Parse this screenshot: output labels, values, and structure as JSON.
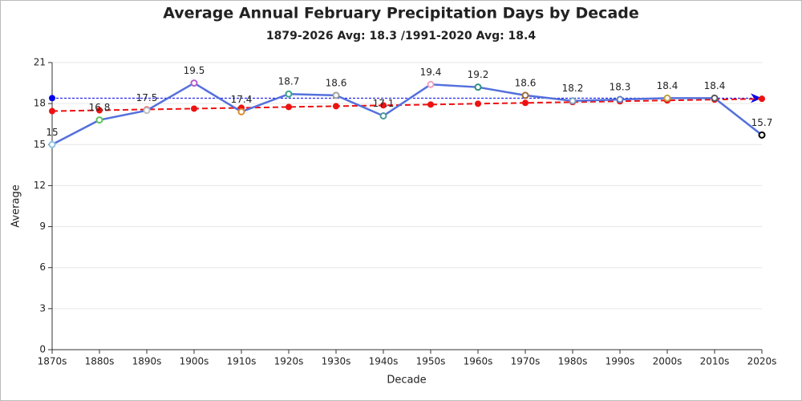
{
  "chart_data": {
    "type": "line",
    "title": "Average Annual February Precipitation Days by Decade",
    "subtitle": "1879-2026 Avg: 18.3 /1991-2020 Avg: 18.4",
    "x_label": "Decade",
    "y_label": "Average",
    "categories": [
      "1870s",
      "1880s",
      "1890s",
      "1900s",
      "1910s",
      "1920s",
      "1930s",
      "1940s",
      "1950s",
      "1960s",
      "1970s",
      "1980s",
      "1990s",
      "2000s",
      "2010s",
      "2020s"
    ],
    "series": [
      {
        "color": "#5470dc",
        "values": [
          15,
          16.8,
          17.5,
          19.5,
          17.4,
          18.7,
          18.6,
          17.1,
          19.4,
          19.2,
          18.6,
          18.2,
          18.3,
          18.4,
          18.4,
          15.7
        ],
        "marker_colors": [
          "#8fc3e8",
          "#5ec35e",
          "#c0c0c0",
          "#b05fc9",
          "#e08b2e",
          "#3aa58a",
          "#a0a0a0",
          "#4a9a9a",
          "#f0a0c0",
          "#2f8f7f",
          "#9b6a3a",
          "#7fa0c0",
          "#6080c0",
          "#c0a040",
          "#5a5a5a",
          "#000000"
        ]
      },
      {
        "color": "#ee1111",
        "dashed": true,
        "values": [
          17.45,
          17.51,
          17.57,
          17.63,
          17.69,
          17.75,
          17.81,
          17.87,
          17.93,
          17.99,
          18.05,
          18.11,
          18.17,
          18.23,
          18.29,
          18.35
        ]
      }
    ],
    "reference_line": {
      "value": 18.4,
      "color": "#0000ee"
    },
    "ylim": [
      0,
      21
    ],
    "yticks": [
      0,
      3,
      6,
      9,
      12,
      15,
      18,
      21
    ],
    "grid": true
  }
}
